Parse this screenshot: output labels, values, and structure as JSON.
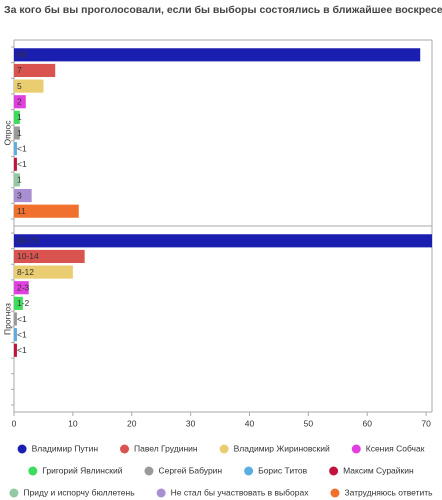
{
  "chart_data": {
    "type": "bar",
    "orientation": "horizontal",
    "title": "За кого бы вы проголосовали, если бы выборы состоялись в ближайшее воскресенье?",
    "categories": [
      "Опрос",
      "Прогноз"
    ],
    "xlim": [
      0,
      71
    ],
    "xticks": [
      0,
      10,
      20,
      30,
      40,
      50,
      60,
      70
    ],
    "series": [
      {
        "name": "Владимир Путин",
        "color": "#1b1fb0",
        "values": [
          69,
          71
        ],
        "value_labels": [
          "69",
          "69-73"
        ]
      },
      {
        "name": "Павел Грудинин",
        "color": "#d9534f",
        "values": [
          7,
          12
        ],
        "value_labels": [
          "7",
          "10-14"
        ]
      },
      {
        "name": "Владимир Жириновский",
        "color": "#ebcd71",
        "values": [
          5,
          10
        ],
        "value_labels": [
          "5",
          "8-12"
        ]
      },
      {
        "name": "Ксения Собчак",
        "color": "#e23fe0",
        "values": [
          2,
          2.5
        ],
        "value_labels": [
          "2",
          "2-3"
        ]
      },
      {
        "name": "Григорий Явлинский",
        "color": "#3ddc5c",
        "values": [
          1,
          1.5
        ],
        "value_labels": [
          "1",
          "1-2"
        ]
      },
      {
        "name": "Сергей Бабурин",
        "color": "#9a9a9a",
        "values": [
          1,
          0.5
        ],
        "value_labels": [
          "1",
          "<1"
        ]
      },
      {
        "name": "Борис Титов",
        "color": "#5caee2",
        "values": [
          0.5,
          0.5
        ],
        "value_labels": [
          "<1",
          "<1"
        ]
      },
      {
        "name": "Максим Сурайкин",
        "color": "#c0143c",
        "values": [
          0.5,
          0.5
        ],
        "value_labels": [
          "<1",
          "<1"
        ]
      },
      {
        "name": "Приду и испорчу бюллетень",
        "color": "#92c9a2",
        "values": [
          1,
          null
        ],
        "value_labels": [
          "1",
          null
        ]
      },
      {
        "name": "Не стал бы участвовать в выборах",
        "color": "#a98fd2",
        "values": [
          3,
          null
        ],
        "value_labels": [
          "3",
          null
        ]
      },
      {
        "name": "Затрудняюсь ответить",
        "color": "#f0702e",
        "values": [
          11,
          null
        ],
        "value_labels": [
          "11",
          null
        ]
      }
    ]
  }
}
